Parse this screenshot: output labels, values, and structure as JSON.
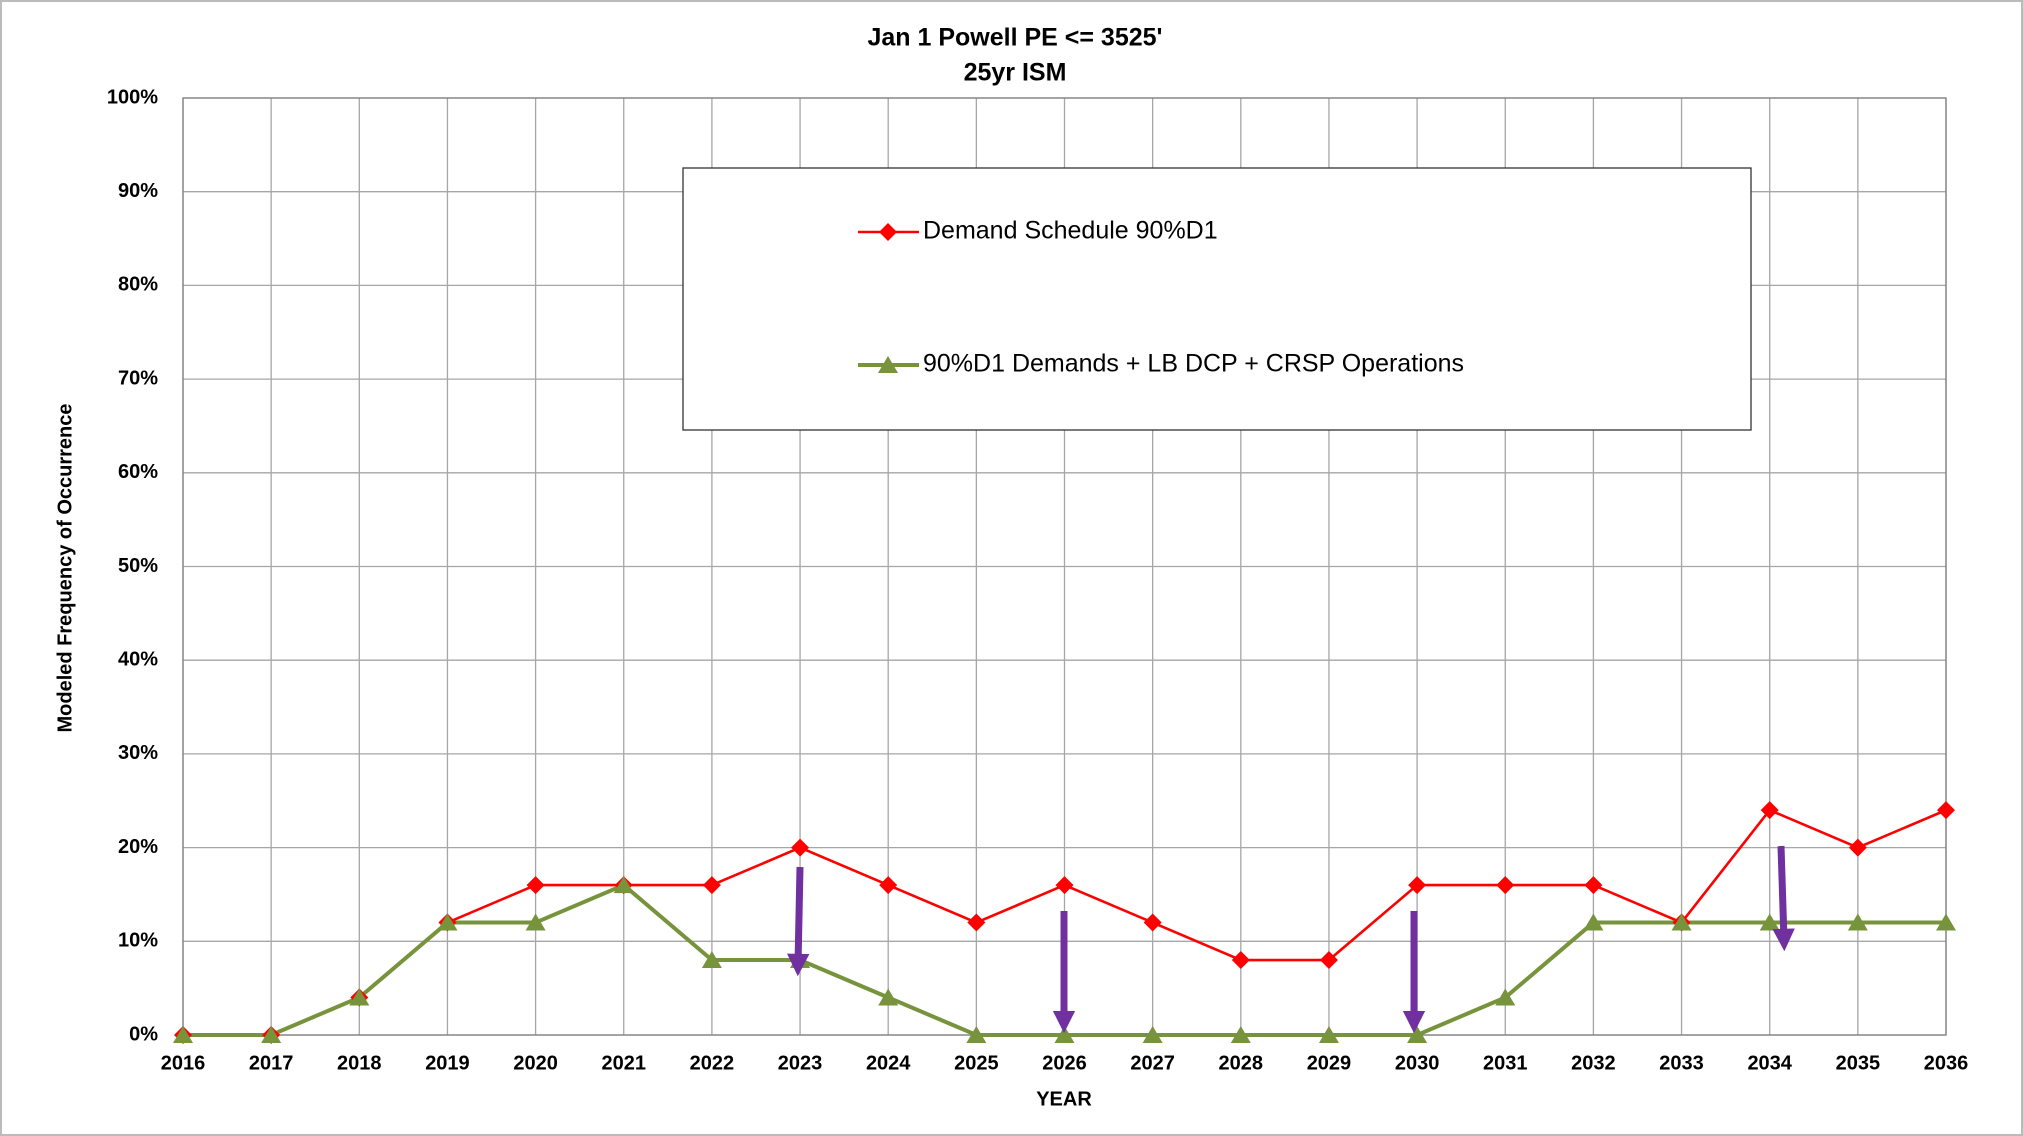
{
  "chart_data": {
    "type": "line",
    "title": "Jan 1 Powell PE <=  3525'",
    "subtitle": "25yr ISM",
    "y_label": "Modeled Frequency of Occurrence",
    "x_label": "YEAR",
    "categories": [
      "2016",
      "2017",
      "2018",
      "2019",
      "2020",
      "2021",
      "2022",
      "2023",
      "2024",
      "2025",
      "2026",
      "2027",
      "2028",
      "2029",
      "2030",
      "2031",
      "2032",
      "2033",
      "2034",
      "2035",
      "2036"
    ],
    "series": [
      {
        "name": "Demand Schedule 90%D1",
        "color": "#ff0000",
        "marker": "diamond",
        "values": [
          0,
          0,
          4,
          12,
          16,
          16,
          16,
          20,
          16,
          12,
          16,
          12,
          8,
          8,
          16,
          16,
          16,
          12,
          24,
          20,
          24
        ]
      },
      {
        "name": "90%D1 Demands + LB DCP + CRSP Operations",
        "color": "#77933c",
        "marker": "triangle",
        "values": [
          0,
          0,
          4,
          12,
          12,
          16,
          8,
          8,
          4,
          0,
          0,
          0,
          0,
          0,
          0,
          4,
          12,
          12,
          12,
          12,
          12
        ]
      }
    ],
    "ylim": [
      0,
      100
    ],
    "yticks": [
      {
        "value": 0,
        "label": "0%"
      },
      {
        "value": 10,
        "label": "10%"
      },
      {
        "value": 20,
        "label": "20%"
      },
      {
        "value": 30,
        "label": "30%"
      },
      {
        "value": 40,
        "label": "40%"
      },
      {
        "value": 50,
        "label": "50%"
      },
      {
        "value": 60,
        "label": "60%"
      },
      {
        "value": 70,
        "label": "70%"
      },
      {
        "value": 80,
        "label": "80%"
      },
      {
        "value": 90,
        "label": "90%"
      },
      {
        "value": 100,
        "label": "100%"
      }
    ],
    "grid": true
  }
}
